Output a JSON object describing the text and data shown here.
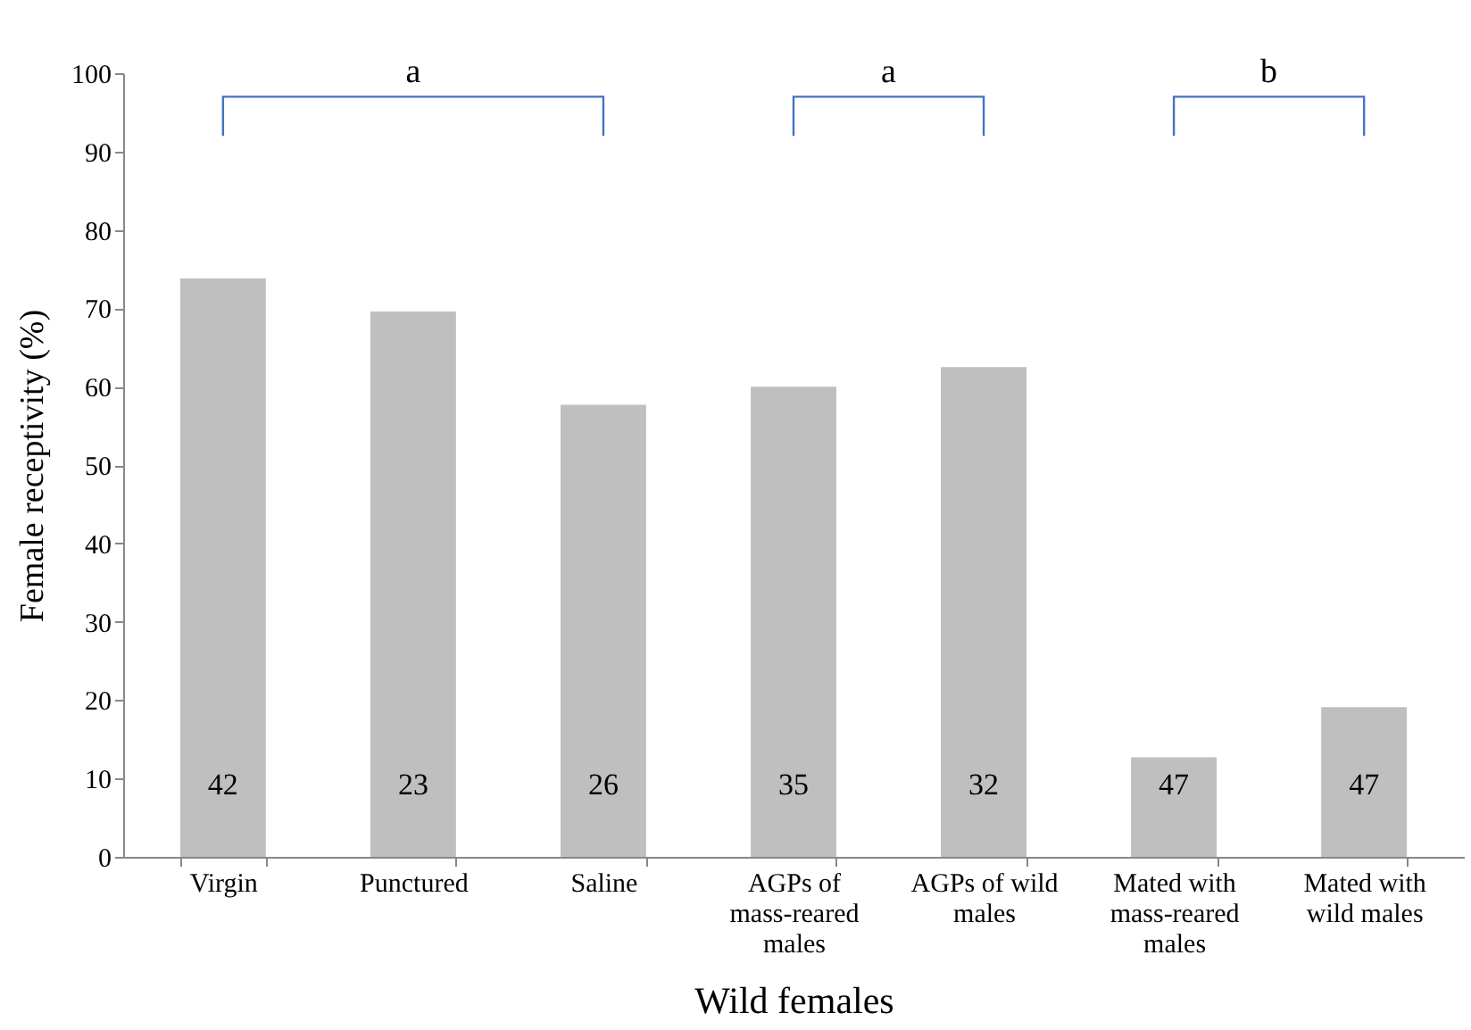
{
  "chart_data": {
    "type": "bar",
    "xlabel": "Wild females",
    "ylabel": "Female receptivity (%)",
    "categories": [
      "Virgin",
      "Punctured",
      "Saline",
      "AGPs of mass-reared males",
      "AGPs of wild males",
      "Mated with mass-reared males",
      "Mated with wild males"
    ],
    "values": [
      73.8,
      69.6,
      57.7,
      60,
      62.5,
      12.7,
      19.1
    ],
    "color": "#bfbfbf",
    "ylim": [
      0,
      100
    ],
    "yticks": [
      0,
      10,
      20,
      30,
      40,
      50,
      60,
      70,
      80,
      90,
      100
    ],
    "grid": false,
    "annotations": [
      "a",
      "a",
      "b",
      "42",
      "23",
      "26",
      "35",
      "32",
      "47",
      "47"
    ]
  }
}
